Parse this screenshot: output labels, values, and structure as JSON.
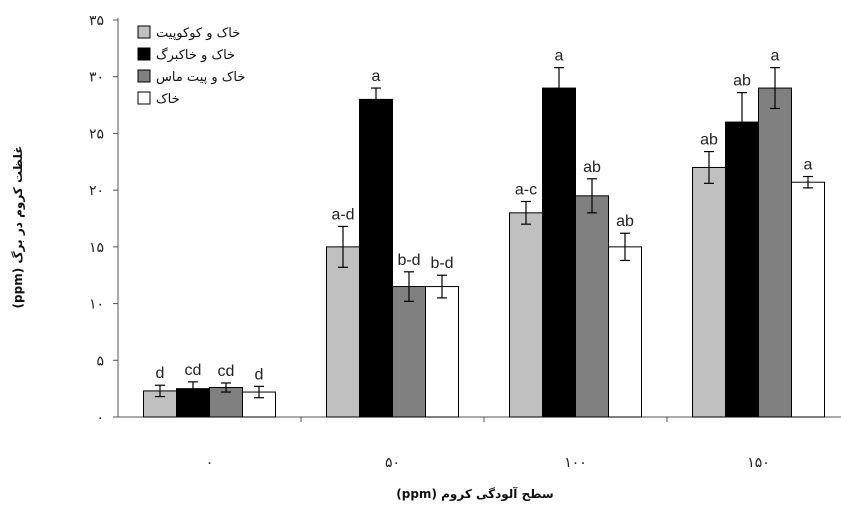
{
  "chart_data": {
    "type": "bar",
    "xlabel": "سطح آلودگی کروم (ppm)",
    "ylabel": "غلظت کروم در برگ (ppm)",
    "ylim": [
      0,
      35
    ],
    "yticks": [
      0,
      5,
      10,
      15,
      20,
      25,
      30,
      35
    ],
    "ytick_labels": [
      "۰",
      "۵",
      "۱۰",
      "۱۵",
      "۲۰",
      "۲۵",
      "۳۰",
      "۳۵"
    ],
    "categories": [
      "۰",
      "۵۰",
      "۱۰۰",
      "۱۵۰"
    ],
    "legend_position": "top-left",
    "grid": false,
    "series": [
      {
        "name": "خاک و کوکوپیت",
        "color": "#c0c0c0",
        "values": [
          2.3,
          15.0,
          18.0,
          22.0
        ],
        "errors": [
          0.5,
          1.8,
          1.0,
          1.4
        ],
        "labels": [
          "d",
          "a-d",
          "a-c",
          "ab"
        ]
      },
      {
        "name": "خاک و خاکبرگ",
        "color": "#000000",
        "values": [
          2.5,
          28.0,
          29.0,
          26.0
        ],
        "errors": [
          0.6,
          1.0,
          1.8,
          2.6
        ],
        "labels": [
          "cd",
          "a",
          "a",
          "ab"
        ]
      },
      {
        "name": "خاک و پیت ماس",
        "color": "#808080",
        "values": [
          2.6,
          11.5,
          19.5,
          29.0
        ],
        "errors": [
          0.4,
          1.3,
          1.5,
          1.8
        ],
        "labels": [
          "cd",
          "b-d",
          "ab",
          "a"
        ]
      },
      {
        "name": "خاک",
        "color": "#ffffff",
        "values": [
          2.2,
          11.5,
          15.0,
          20.7
        ],
        "errors": [
          0.5,
          1.0,
          1.2,
          0.5
        ],
        "labels": [
          "d",
          "b-d",
          "ab",
          "a"
        ]
      }
    ]
  }
}
